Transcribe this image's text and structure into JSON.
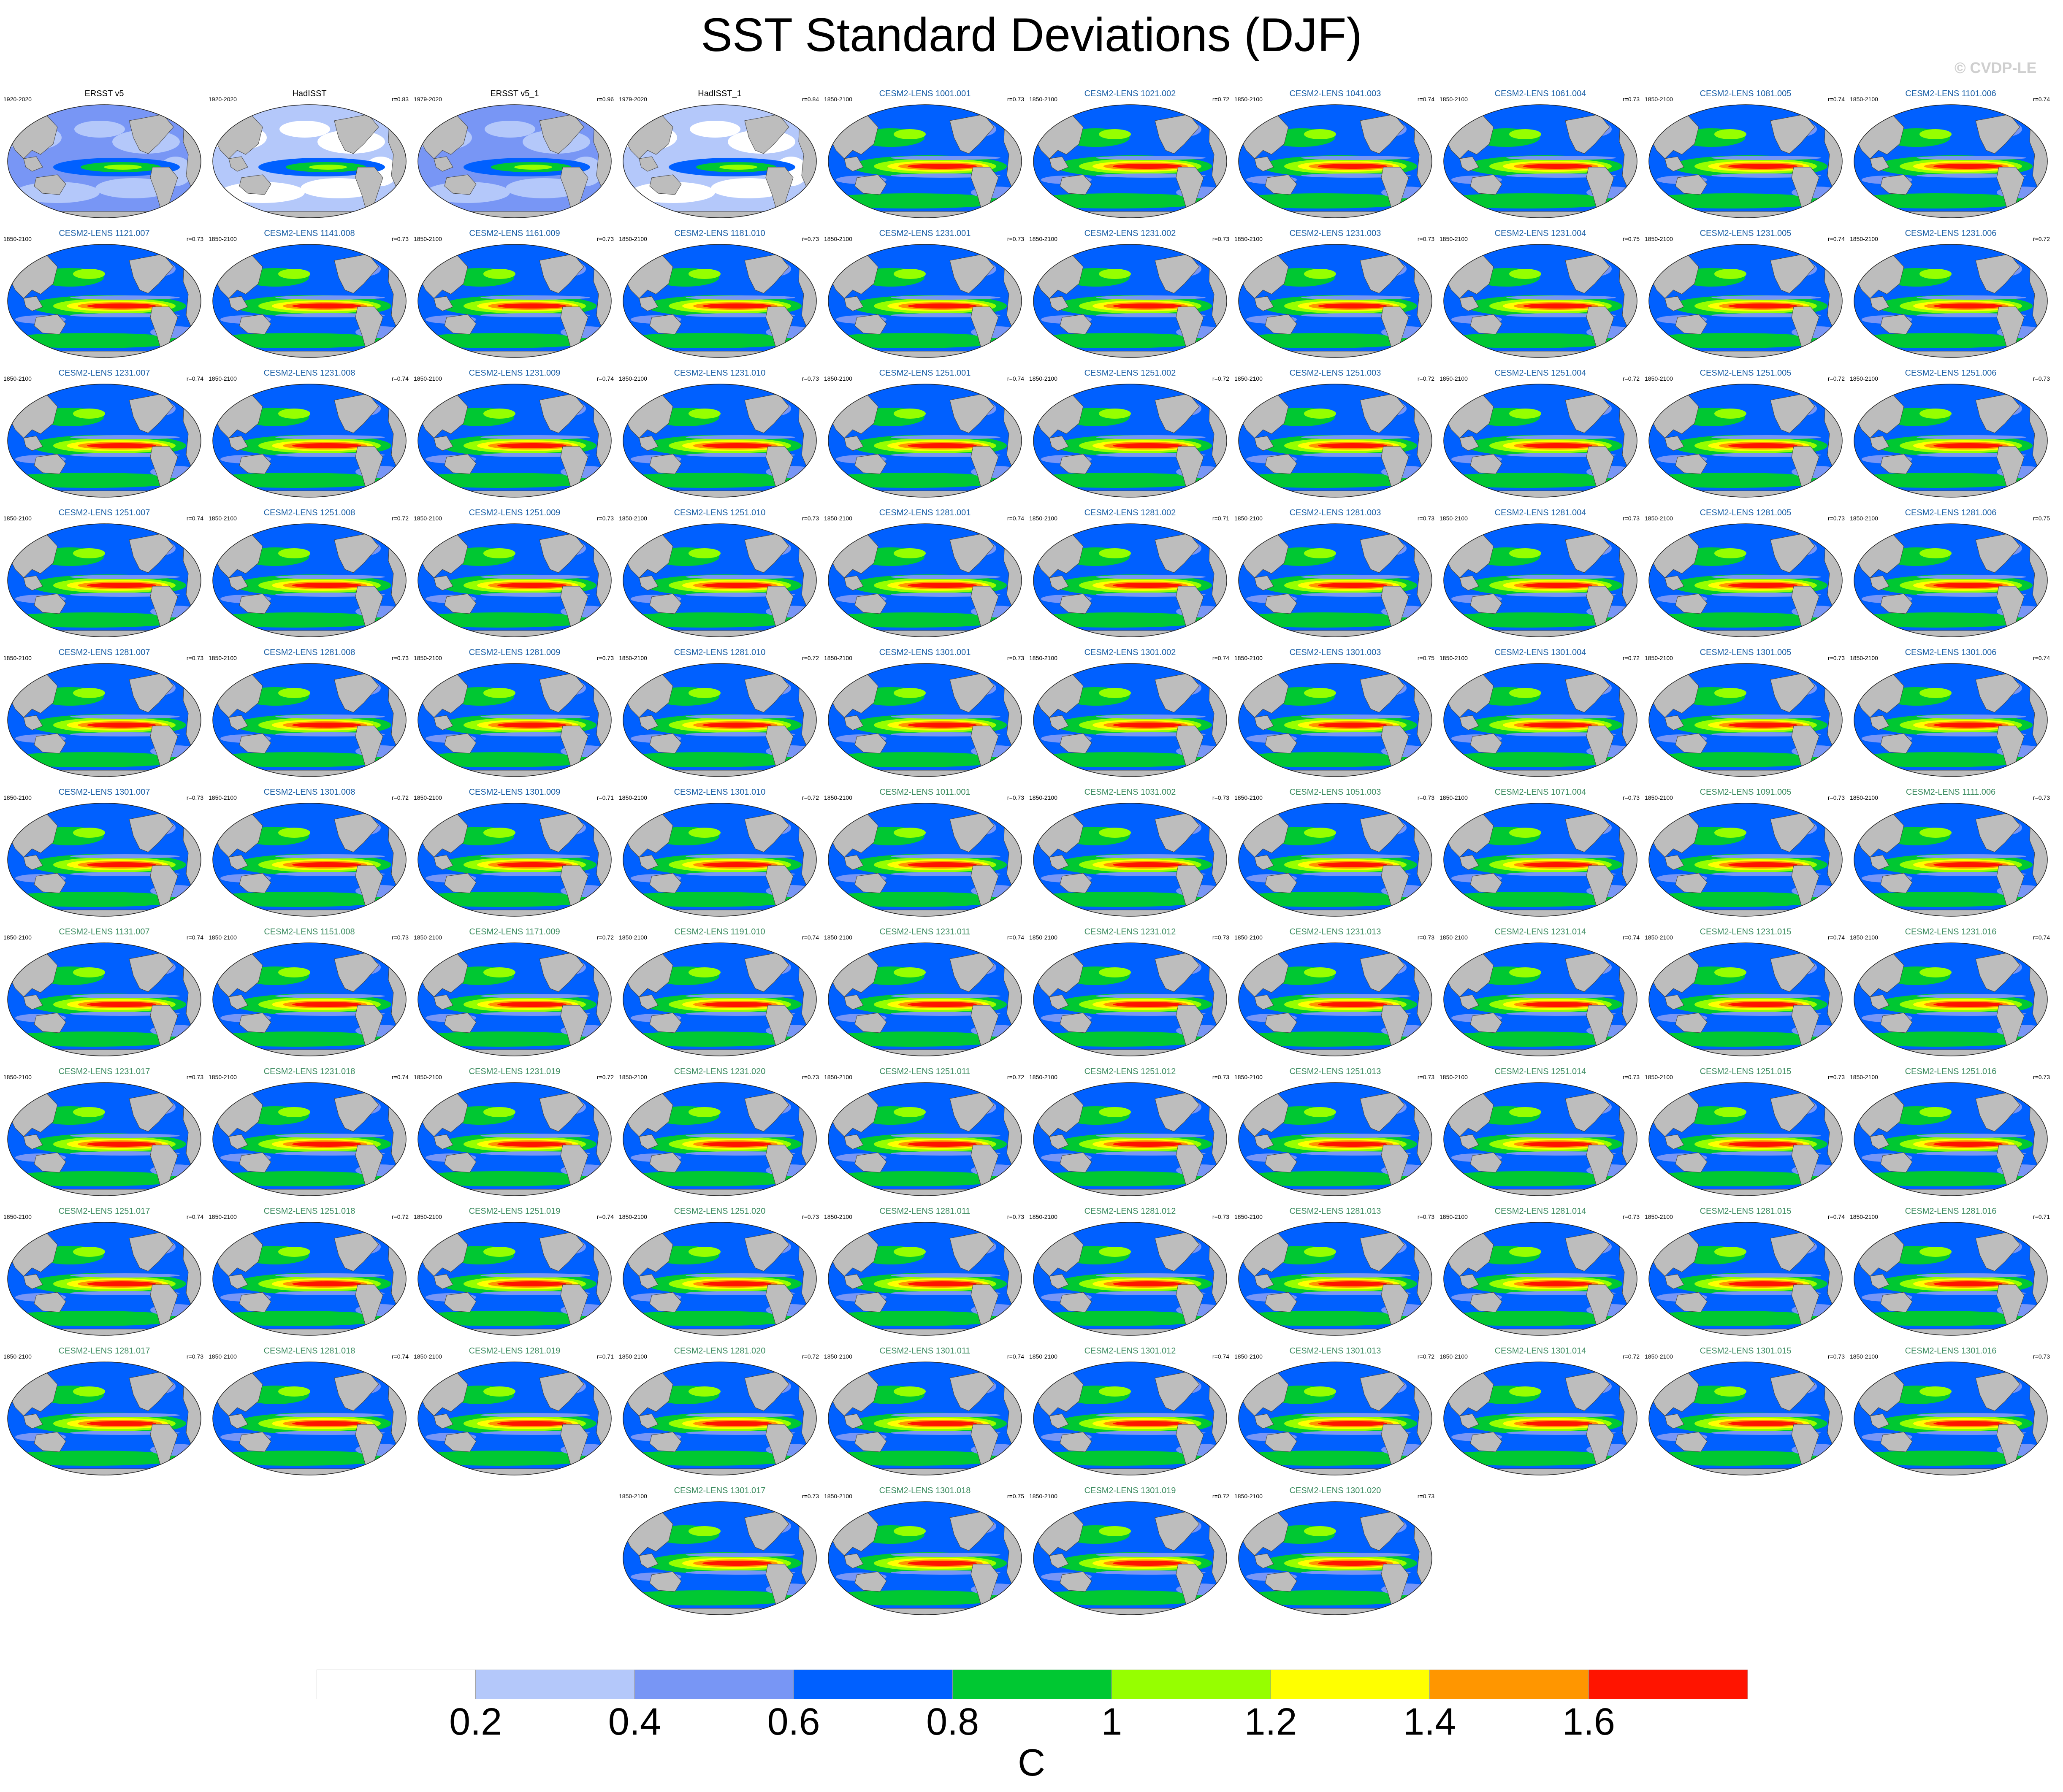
{
  "title": "SST Standard Deviations (DJF)",
  "watermark": "© CVDP-LE",
  "colors": {
    "levels": [
      "#ffffff",
      "#b4c8fa",
      "#7896f5",
      "#0060ff",
      "#00c832",
      "#96ff00",
      "#ffff00",
      "#ff9600",
      "#ff1400"
    ],
    "land": "#bdbdbd",
    "coast": "#444444"
  },
  "chart_data": {
    "type": "heatmap",
    "description_kind": "small multiples of global SST standard deviation maps",
    "colorbar": {
      "boundaries": [
        0.2,
        0.4,
        0.6,
        0.8,
        1,
        1.2,
        1.4,
        1.6
      ],
      "labels": [
        "0.2",
        "0.4",
        "0.6",
        "0.8",
        "1",
        "1.2",
        "1.4",
        "1.6"
      ],
      "units": "C"
    },
    "panels": [
      {
        "name": "ERSST v5",
        "years": "1920-2020",
        "r": "",
        "kind": "obs"
      },
      {
        "name": "HadISST",
        "years": "1920-2020",
        "r": "r=0.83",
        "kind": "obs2"
      },
      {
        "name": "ERSST v5_1",
        "years": "1979-2020",
        "r": "r=0.96",
        "kind": "obs"
      },
      {
        "name": "HadISST_1",
        "years": "1979-2020",
        "r": "r=0.84",
        "kind": "obs2"
      },
      {
        "name": "CESM2-LENS 1001.001",
        "years": "1850-2100",
        "r": "r=0.73",
        "kind": "c1"
      },
      {
        "name": "CESM2-LENS 1021.002",
        "years": "1850-2100",
        "r": "r=0.72",
        "kind": "c1"
      },
      {
        "name": "CESM2-LENS 1041.003",
        "years": "1850-2100",
        "r": "r=0.74",
        "kind": "c1"
      },
      {
        "name": "CESM2-LENS 1061.004",
        "years": "1850-2100",
        "r": "r=0.73",
        "kind": "c1"
      },
      {
        "name": "CESM2-LENS 1081.005",
        "years": "1850-2100",
        "r": "r=0.74",
        "kind": "c1"
      },
      {
        "name": "CESM2-LENS 1101.006",
        "years": "1850-2100",
        "r": "r=0.74",
        "kind": "c1"
      },
      {
        "name": "CESM2-LENS 1121.007",
        "years": "1850-2100",
        "r": "r=0.73",
        "kind": "c1"
      },
      {
        "name": "CESM2-LENS 1141.008",
        "years": "1850-2100",
        "r": "r=0.73",
        "kind": "c1"
      },
      {
        "name": "CESM2-LENS 1161.009",
        "years": "1850-2100",
        "r": "r=0.73",
        "kind": "c1"
      },
      {
        "name": "CESM2-LENS 1181.010",
        "years": "1850-2100",
        "r": "r=0.73",
        "kind": "c1"
      },
      {
        "name": "CESM2-LENS 1231.001",
        "years": "1850-2100",
        "r": "r=0.73",
        "kind": "c1"
      },
      {
        "name": "CESM2-LENS 1231.002",
        "years": "1850-2100",
        "r": "r=0.73",
        "kind": "c1"
      },
      {
        "name": "CESM2-LENS 1231.003",
        "years": "1850-2100",
        "r": "r=0.73",
        "kind": "c1"
      },
      {
        "name": "CESM2-LENS 1231.004",
        "years": "1850-2100",
        "r": "r=0.75",
        "kind": "c1"
      },
      {
        "name": "CESM2-LENS 1231.005",
        "years": "1850-2100",
        "r": "r=0.74",
        "kind": "c1"
      },
      {
        "name": "CESM2-LENS 1231.006",
        "years": "1850-2100",
        "r": "r=0.72",
        "kind": "c1"
      },
      {
        "name": "CESM2-LENS 1231.007",
        "years": "1850-2100",
        "r": "r=0.74",
        "kind": "c1"
      },
      {
        "name": "CESM2-LENS 1231.008",
        "years": "1850-2100",
        "r": "r=0.74",
        "kind": "c1"
      },
      {
        "name": "CESM2-LENS 1231.009",
        "years": "1850-2100",
        "r": "r=0.74",
        "kind": "c1"
      },
      {
        "name": "CESM2-LENS 1231.010",
        "years": "1850-2100",
        "r": "r=0.73",
        "kind": "c1"
      },
      {
        "name": "CESM2-LENS 1251.001",
        "years": "1850-2100",
        "r": "r=0.74",
        "kind": "c1"
      },
      {
        "name": "CESM2-LENS 1251.002",
        "years": "1850-2100",
        "r": "r=0.72",
        "kind": "c1"
      },
      {
        "name": "CESM2-LENS 1251.003",
        "years": "1850-2100",
        "r": "r=0.72",
        "kind": "c1"
      },
      {
        "name": "CESM2-LENS 1251.004",
        "years": "1850-2100",
        "r": "r=0.72",
        "kind": "c1"
      },
      {
        "name": "CESM2-LENS 1251.005",
        "years": "1850-2100",
        "r": "r=0.72",
        "kind": "c1"
      },
      {
        "name": "CESM2-LENS 1251.006",
        "years": "1850-2100",
        "r": "r=0.73",
        "kind": "c1"
      },
      {
        "name": "CESM2-LENS 1251.007",
        "years": "1850-2100",
        "r": "r=0.74",
        "kind": "c1"
      },
      {
        "name": "CESM2-LENS 1251.008",
        "years": "1850-2100",
        "r": "r=0.72",
        "kind": "c1"
      },
      {
        "name": "CESM2-LENS 1251.009",
        "years": "1850-2100",
        "r": "r=0.73",
        "kind": "c1"
      },
      {
        "name": "CESM2-LENS 1251.010",
        "years": "1850-2100",
        "r": "r=0.73",
        "kind": "c1"
      },
      {
        "name": "CESM2-LENS 1281.001",
        "years": "1850-2100",
        "r": "r=0.74",
        "kind": "c1"
      },
      {
        "name": "CESM2-LENS 1281.002",
        "years": "1850-2100",
        "r": "r=0.71",
        "kind": "c1"
      },
      {
        "name": "CESM2-LENS 1281.003",
        "years": "1850-2100",
        "r": "r=0.73",
        "kind": "c1"
      },
      {
        "name": "CESM2-LENS 1281.004",
        "years": "1850-2100",
        "r": "r=0.73",
        "kind": "c1"
      },
      {
        "name": "CESM2-LENS 1281.005",
        "years": "1850-2100",
        "r": "r=0.73",
        "kind": "c1"
      },
      {
        "name": "CESM2-LENS 1281.006",
        "years": "1850-2100",
        "r": "r=0.75",
        "kind": "c1"
      },
      {
        "name": "CESM2-LENS 1281.007",
        "years": "1850-2100",
        "r": "r=0.73",
        "kind": "c1"
      },
      {
        "name": "CESM2-LENS 1281.008",
        "years": "1850-2100",
        "r": "r=0.73",
        "kind": "c1"
      },
      {
        "name": "CESM2-LENS 1281.009",
        "years": "1850-2100",
        "r": "r=0.73",
        "kind": "c1"
      },
      {
        "name": "CESM2-LENS 1281.010",
        "years": "1850-2100",
        "r": "r=0.72",
        "kind": "c1"
      },
      {
        "name": "CESM2-LENS 1301.001",
        "years": "1850-2100",
        "r": "r=0.73",
        "kind": "c1"
      },
      {
        "name": "CESM2-LENS 1301.002",
        "years": "1850-2100",
        "r": "r=0.74",
        "kind": "c1"
      },
      {
        "name": "CESM2-LENS 1301.003",
        "years": "1850-2100",
        "r": "r=0.75",
        "kind": "c1"
      },
      {
        "name": "CESM2-LENS 1301.004",
        "years": "1850-2100",
        "r": "r=0.72",
        "kind": "c1"
      },
      {
        "name": "CESM2-LENS 1301.005",
        "years": "1850-2100",
        "r": "r=0.73",
        "kind": "c1"
      },
      {
        "name": "CESM2-LENS 1301.006",
        "years": "1850-2100",
        "r": "r=0.74",
        "kind": "c1"
      },
      {
        "name": "CESM2-LENS 1301.007",
        "years": "1850-2100",
        "r": "r=0.73",
        "kind": "c1"
      },
      {
        "name": "CESM2-LENS 1301.008",
        "years": "1850-2100",
        "r": "r=0.72",
        "kind": "c1"
      },
      {
        "name": "CESM2-LENS 1301.009",
        "years": "1850-2100",
        "r": "r=0.71",
        "kind": "c1"
      },
      {
        "name": "CESM2-LENS 1301.010",
        "years": "1850-2100",
        "r": "r=0.72",
        "kind": "c1"
      },
      {
        "name": "CESM2-LENS 1011.001",
        "years": "1850-2100",
        "r": "r=0.73",
        "kind": "c2"
      },
      {
        "name": "CESM2-LENS 1031.002",
        "years": "1850-2100",
        "r": "r=0.73",
        "kind": "c2"
      },
      {
        "name": "CESM2-LENS 1051.003",
        "years": "1850-2100",
        "r": "r=0.73",
        "kind": "c2"
      },
      {
        "name": "CESM2-LENS 1071.004",
        "years": "1850-2100",
        "r": "r=0.73",
        "kind": "c2"
      },
      {
        "name": "CESM2-LENS 1091.005",
        "years": "1850-2100",
        "r": "r=0.73",
        "kind": "c2"
      },
      {
        "name": "CESM2-LENS 1111.006",
        "years": "1850-2100",
        "r": "r=0.73",
        "kind": "c2"
      },
      {
        "name": "CESM2-LENS 1131.007",
        "years": "1850-2100",
        "r": "r=0.74",
        "kind": "c2"
      },
      {
        "name": "CESM2-LENS 1151.008",
        "years": "1850-2100",
        "r": "r=0.73",
        "kind": "c2"
      },
      {
        "name": "CESM2-LENS 1171.009",
        "years": "1850-2100",
        "r": "r=0.72",
        "kind": "c2"
      },
      {
        "name": "CESM2-LENS 1191.010",
        "years": "1850-2100",
        "r": "r=0.74",
        "kind": "c2"
      },
      {
        "name": "CESM2-LENS 1231.011",
        "years": "1850-2100",
        "r": "r=0.74",
        "kind": "c2"
      },
      {
        "name": "CESM2-LENS 1231.012",
        "years": "1850-2100",
        "r": "r=0.73",
        "kind": "c2"
      },
      {
        "name": "CESM2-LENS 1231.013",
        "years": "1850-2100",
        "r": "r=0.73",
        "kind": "c2"
      },
      {
        "name": "CESM2-LENS 1231.014",
        "years": "1850-2100",
        "r": "r=0.74",
        "kind": "c2"
      },
      {
        "name": "CESM2-LENS 1231.015",
        "years": "1850-2100",
        "r": "r=0.74",
        "kind": "c2"
      },
      {
        "name": "CESM2-LENS 1231.016",
        "years": "1850-2100",
        "r": "r=0.74",
        "kind": "c2"
      },
      {
        "name": "CESM2-LENS 1231.017",
        "years": "1850-2100",
        "r": "r=0.73",
        "kind": "c2"
      },
      {
        "name": "CESM2-LENS 1231.018",
        "years": "1850-2100",
        "r": "r=0.74",
        "kind": "c2"
      },
      {
        "name": "CESM2-LENS 1231.019",
        "years": "1850-2100",
        "r": "r=0.72",
        "kind": "c2"
      },
      {
        "name": "CESM2-LENS 1231.020",
        "years": "1850-2100",
        "r": "r=0.73",
        "kind": "c2"
      },
      {
        "name": "CESM2-LENS 1251.011",
        "years": "1850-2100",
        "r": "r=0.72",
        "kind": "c2"
      },
      {
        "name": "CESM2-LENS 1251.012",
        "years": "1850-2100",
        "r": "r=0.73",
        "kind": "c2"
      },
      {
        "name": "CESM2-LENS 1251.013",
        "years": "1850-2100",
        "r": "r=0.73",
        "kind": "c2"
      },
      {
        "name": "CESM2-LENS 1251.014",
        "years": "1850-2100",
        "r": "r=0.73",
        "kind": "c2"
      },
      {
        "name": "CESM2-LENS 1251.015",
        "years": "1850-2100",
        "r": "r=0.73",
        "kind": "c2"
      },
      {
        "name": "CESM2-LENS 1251.016",
        "years": "1850-2100",
        "r": "r=0.73",
        "kind": "c2"
      },
      {
        "name": "CESM2-LENS 1251.017",
        "years": "1850-2100",
        "r": "r=0.74",
        "kind": "c2"
      },
      {
        "name": "CESM2-LENS 1251.018",
        "years": "1850-2100",
        "r": "r=0.72",
        "kind": "c2"
      },
      {
        "name": "CESM2-LENS 1251.019",
        "years": "1850-2100",
        "r": "r=0.74",
        "kind": "c2"
      },
      {
        "name": "CESM2-LENS 1251.020",
        "years": "1850-2100",
        "r": "r=0.73",
        "kind": "c2"
      },
      {
        "name": "CESM2-LENS 1281.011",
        "years": "1850-2100",
        "r": "r=0.73",
        "kind": "c2"
      },
      {
        "name": "CESM2-LENS 1281.012",
        "years": "1850-2100",
        "r": "r=0.73",
        "kind": "c2"
      },
      {
        "name": "CESM2-LENS 1281.013",
        "years": "1850-2100",
        "r": "r=0.73",
        "kind": "c2"
      },
      {
        "name": "CESM2-LENS 1281.014",
        "years": "1850-2100",
        "r": "r=0.73",
        "kind": "c2"
      },
      {
        "name": "CESM2-LENS 1281.015",
        "years": "1850-2100",
        "r": "r=0.74",
        "kind": "c2"
      },
      {
        "name": "CESM2-LENS 1281.016",
        "years": "1850-2100",
        "r": "r=0.71",
        "kind": "c2"
      },
      {
        "name": "CESM2-LENS 1281.017",
        "years": "1850-2100",
        "r": "r=0.73",
        "kind": "c2"
      },
      {
        "name": "CESM2-LENS 1281.018",
        "years": "1850-2100",
        "r": "r=0.74",
        "kind": "c2"
      },
      {
        "name": "CESM2-LENS 1281.019",
        "years": "1850-2100",
        "r": "r=0.71",
        "kind": "c2"
      },
      {
        "name": "CESM2-LENS 1281.020",
        "years": "1850-2100",
        "r": "r=0.72",
        "kind": "c2"
      },
      {
        "name": "CESM2-LENS 1301.011",
        "years": "1850-2100",
        "r": "r=0.74",
        "kind": "c2"
      },
      {
        "name": "CESM2-LENS 1301.012",
        "years": "1850-2100",
        "r": "r=0.74",
        "kind": "c2"
      },
      {
        "name": "CESM2-LENS 1301.013",
        "years": "1850-2100",
        "r": "r=0.72",
        "kind": "c2"
      },
      {
        "name": "CESM2-LENS 1301.014",
        "years": "1850-2100",
        "r": "r=0.72",
        "kind": "c2"
      },
      {
        "name": "CESM2-LENS 1301.015",
        "years": "1850-2100",
        "r": "r=0.73",
        "kind": "c2"
      },
      {
        "name": "CESM2-LENS 1301.016",
        "years": "1850-2100",
        "r": "r=0.73",
        "kind": "c2"
      },
      {
        "name": "CESM2-LENS 1301.017",
        "years": "1850-2100",
        "r": "r=0.73",
        "kind": "c2"
      },
      {
        "name": "CESM2-LENS 1301.018",
        "years": "1850-2100",
        "r": "r=0.75",
        "kind": "c2"
      },
      {
        "name": "CESM2-LENS 1301.019",
        "years": "1850-2100",
        "r": "r=0.72",
        "kind": "c2"
      },
      {
        "name": "CESM2-LENS 1301.020",
        "years": "1850-2100",
        "r": "r=0.73",
        "kind": "c2"
      }
    ]
  }
}
